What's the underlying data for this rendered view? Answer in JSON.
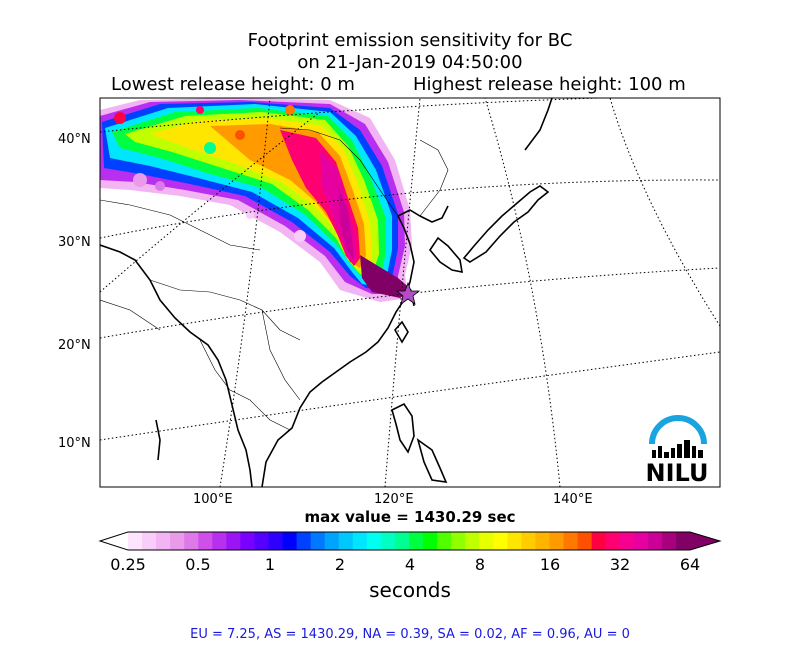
{
  "title": {
    "line1": "Footprint emission sensitivity for BC",
    "line2": "on 21-Jan-2019 04:50:00",
    "lowest_release": "Lowest release height: 0 m",
    "highest_release": "Highest release height: 100 m"
  },
  "axes": {
    "lat_labels": [
      "40°N",
      "30°N",
      "20°N",
      "10°N"
    ],
    "lon_labels": [
      "100°E",
      "120°E",
      "140°E"
    ]
  },
  "max_value": "max value = 1430.29 sec",
  "colorbar": {
    "ticks": [
      "0.25",
      "0.5",
      "1",
      "2",
      "4",
      "8",
      "16",
      "32",
      "64"
    ],
    "unit": "seconds",
    "colors": [
      "#fde6fd",
      "#f9cdf9",
      "#f2b4f2",
      "#e99be9",
      "#de79ea",
      "#cf4fe9",
      "#b92ff0",
      "#9a14f5",
      "#7a00ff",
      "#5500ff",
      "#2d00ff",
      "#0000ff",
      "#0040ff",
      "#0078ff",
      "#00a4ff",
      "#00c8ff",
      "#00e6ff",
      "#00fff0",
      "#00ffc0",
      "#00ff90",
      "#00ff40",
      "#00ff00",
      "#50ff00",
      "#90ff00",
      "#c0ff00",
      "#e8ff00",
      "#ffff00",
      "#ffe600",
      "#ffcc00",
      "#ffb400",
      "#ff9a00",
      "#ff7800",
      "#ff5000",
      "#ff0040",
      "#ff0070",
      "#f50090",
      "#e600a0",
      "#cc0099",
      "#a8007d",
      "#800066"
    ]
  },
  "logo": {
    "text": "NILU",
    "arc_color": "#19a3e0"
  },
  "footer": "EU = 7.25,  AS = 1430.29,  NA = 0.39,  SA = 0.02,  AF = 0.96,  AU = 0"
}
